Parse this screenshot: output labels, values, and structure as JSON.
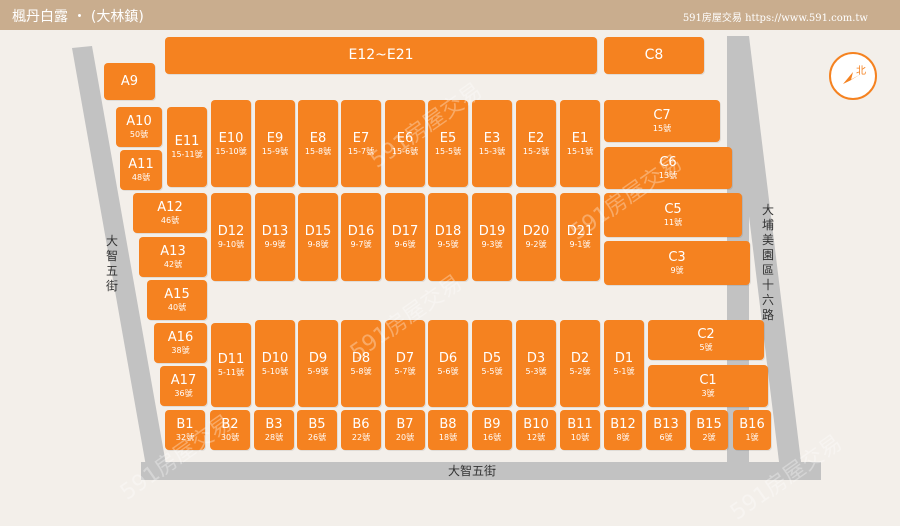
{
  "header": {
    "title": "楓丹白露 ・ (大林鎮)",
    "site": "591房屋交易 https://www.591.com.tw"
  },
  "roads": {
    "bottom": "大智五街",
    "left": "大智五街",
    "right": "大埔美園區十六路"
  },
  "compass": {
    "label": "北"
  },
  "watermark": "591房屋交易",
  "lots": [
    {
      "id": "E12~E21",
      "num": ""
    },
    {
      "id": "C8",
      "num": ""
    },
    {
      "id": "A9",
      "num": ""
    },
    {
      "id": "A10",
      "num": "50號"
    },
    {
      "id": "A11",
      "num": "48號"
    },
    {
      "id": "E11",
      "num": "15-11號"
    },
    {
      "id": "E10",
      "num": "15-10號"
    },
    {
      "id": "E9",
      "num": "15-9號"
    },
    {
      "id": "E8",
      "num": "15-8號"
    },
    {
      "id": "E7",
      "num": "15-7號"
    },
    {
      "id": "E6",
      "num": "15-6號"
    },
    {
      "id": "E5",
      "num": "15-5號"
    },
    {
      "id": "E3",
      "num": "15-3號"
    },
    {
      "id": "E2",
      "num": "15-2號"
    },
    {
      "id": "E1",
      "num": "15-1號"
    },
    {
      "id": "C7",
      "num": "15號"
    },
    {
      "id": "C6",
      "num": "13號"
    },
    {
      "id": "A12",
      "num": "46號"
    },
    {
      "id": "A13",
      "num": "42號"
    },
    {
      "id": "D12",
      "num": "9-10號"
    },
    {
      "id": "D13",
      "num": "9-9號"
    },
    {
      "id": "D15",
      "num": "9-8號"
    },
    {
      "id": "D16",
      "num": "9-7號"
    },
    {
      "id": "D17",
      "num": "9-6號"
    },
    {
      "id": "D18",
      "num": "9-5號"
    },
    {
      "id": "D19",
      "num": "9-3號"
    },
    {
      "id": "D20",
      "num": "9-2號"
    },
    {
      "id": "D21",
      "num": "9-1號"
    },
    {
      "id": "C5",
      "num": "11號"
    },
    {
      "id": "C3",
      "num": "9號"
    },
    {
      "id": "A15",
      "num": "40號"
    },
    {
      "id": "A16",
      "num": "38號"
    },
    {
      "id": "A17",
      "num": "36號"
    },
    {
      "id": "D11",
      "num": "5-11號"
    },
    {
      "id": "D10",
      "num": "5-10號"
    },
    {
      "id": "D9",
      "num": "5-9號"
    },
    {
      "id": "D8",
      "num": "5-8號"
    },
    {
      "id": "D7",
      "num": "5-7號"
    },
    {
      "id": "D6",
      "num": "5-6號"
    },
    {
      "id": "D5",
      "num": "5-5號"
    },
    {
      "id": "D3",
      "num": "5-3號"
    },
    {
      "id": "D2",
      "num": "5-2號"
    },
    {
      "id": "D1",
      "num": "5-1號"
    },
    {
      "id": "C2",
      "num": "5號"
    },
    {
      "id": "C1",
      "num": "3號"
    },
    {
      "id": "B1",
      "num": "32號"
    },
    {
      "id": "B2",
      "num": "30號"
    },
    {
      "id": "B3",
      "num": "28號"
    },
    {
      "id": "B5",
      "num": "26號"
    },
    {
      "id": "B6",
      "num": "22號"
    },
    {
      "id": "B7",
      "num": "20號"
    },
    {
      "id": "B8",
      "num": "18號"
    },
    {
      "id": "B9",
      "num": "16號"
    },
    {
      "id": "B10",
      "num": "12號"
    },
    {
      "id": "B11",
      "num": "10號"
    },
    {
      "id": "B12",
      "num": "8號"
    },
    {
      "id": "B13",
      "num": "6號"
    },
    {
      "id": "B15",
      "num": "2號"
    },
    {
      "id": "B16",
      "num": "1號"
    }
  ]
}
